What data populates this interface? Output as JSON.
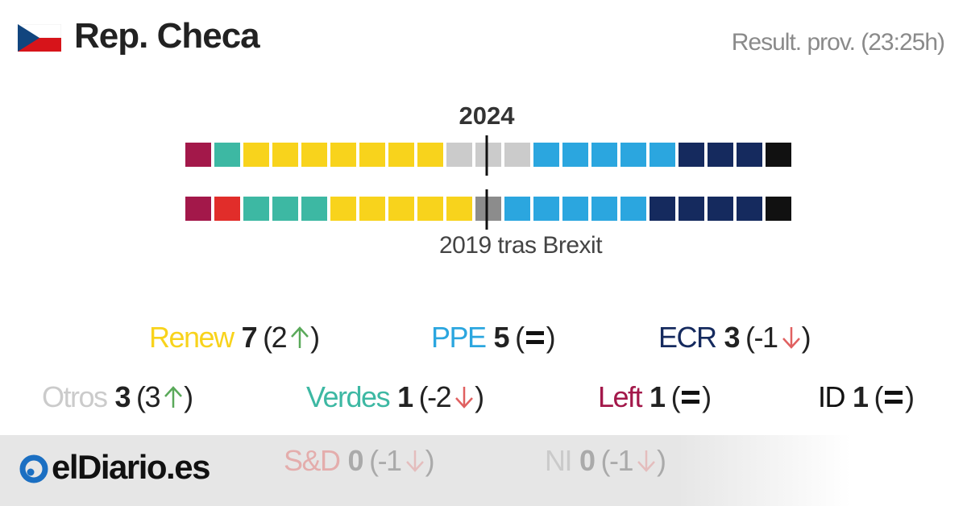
{
  "header": {
    "title": "Rep. Checa",
    "status": "Result. prov. (23:25h)"
  },
  "chart_data": {
    "type": "seat-bar",
    "categories": [
      "2024",
      "2019 tras Brexit"
    ],
    "series": [
      {
        "name": "Left",
        "color": "#a3184a",
        "values": [
          1,
          1
        ],
        "change": 0
      },
      {
        "name": "S&D",
        "color": "#e12d2a",
        "values": [
          0,
          1
        ],
        "change": -1
      },
      {
        "name": "Verdes",
        "color": "#3db8a3",
        "values": [
          1,
          3
        ],
        "change": -2
      },
      {
        "name": "Renew",
        "color": "#f8d31c",
        "values": [
          7,
          5
        ],
        "change": 2
      },
      {
        "name": "Otros",
        "color": "#cbcbcb",
        "values": [
          3,
          0
        ],
        "change": 3
      },
      {
        "name": "NI",
        "color": "#8c8c8c",
        "values": [
          0,
          1
        ],
        "change": -1
      },
      {
        "name": "PPE",
        "color": "#2ba6df",
        "values": [
          5,
          5
        ],
        "change": 0
      },
      {
        "name": "ECR",
        "color": "#152a5e",
        "values": [
          3,
          4
        ],
        "change": -1
      },
      {
        "name": "ID",
        "color": "#111111",
        "values": [
          1,
          1
        ],
        "change": 0
      }
    ]
  },
  "brand": "elDiario.es"
}
